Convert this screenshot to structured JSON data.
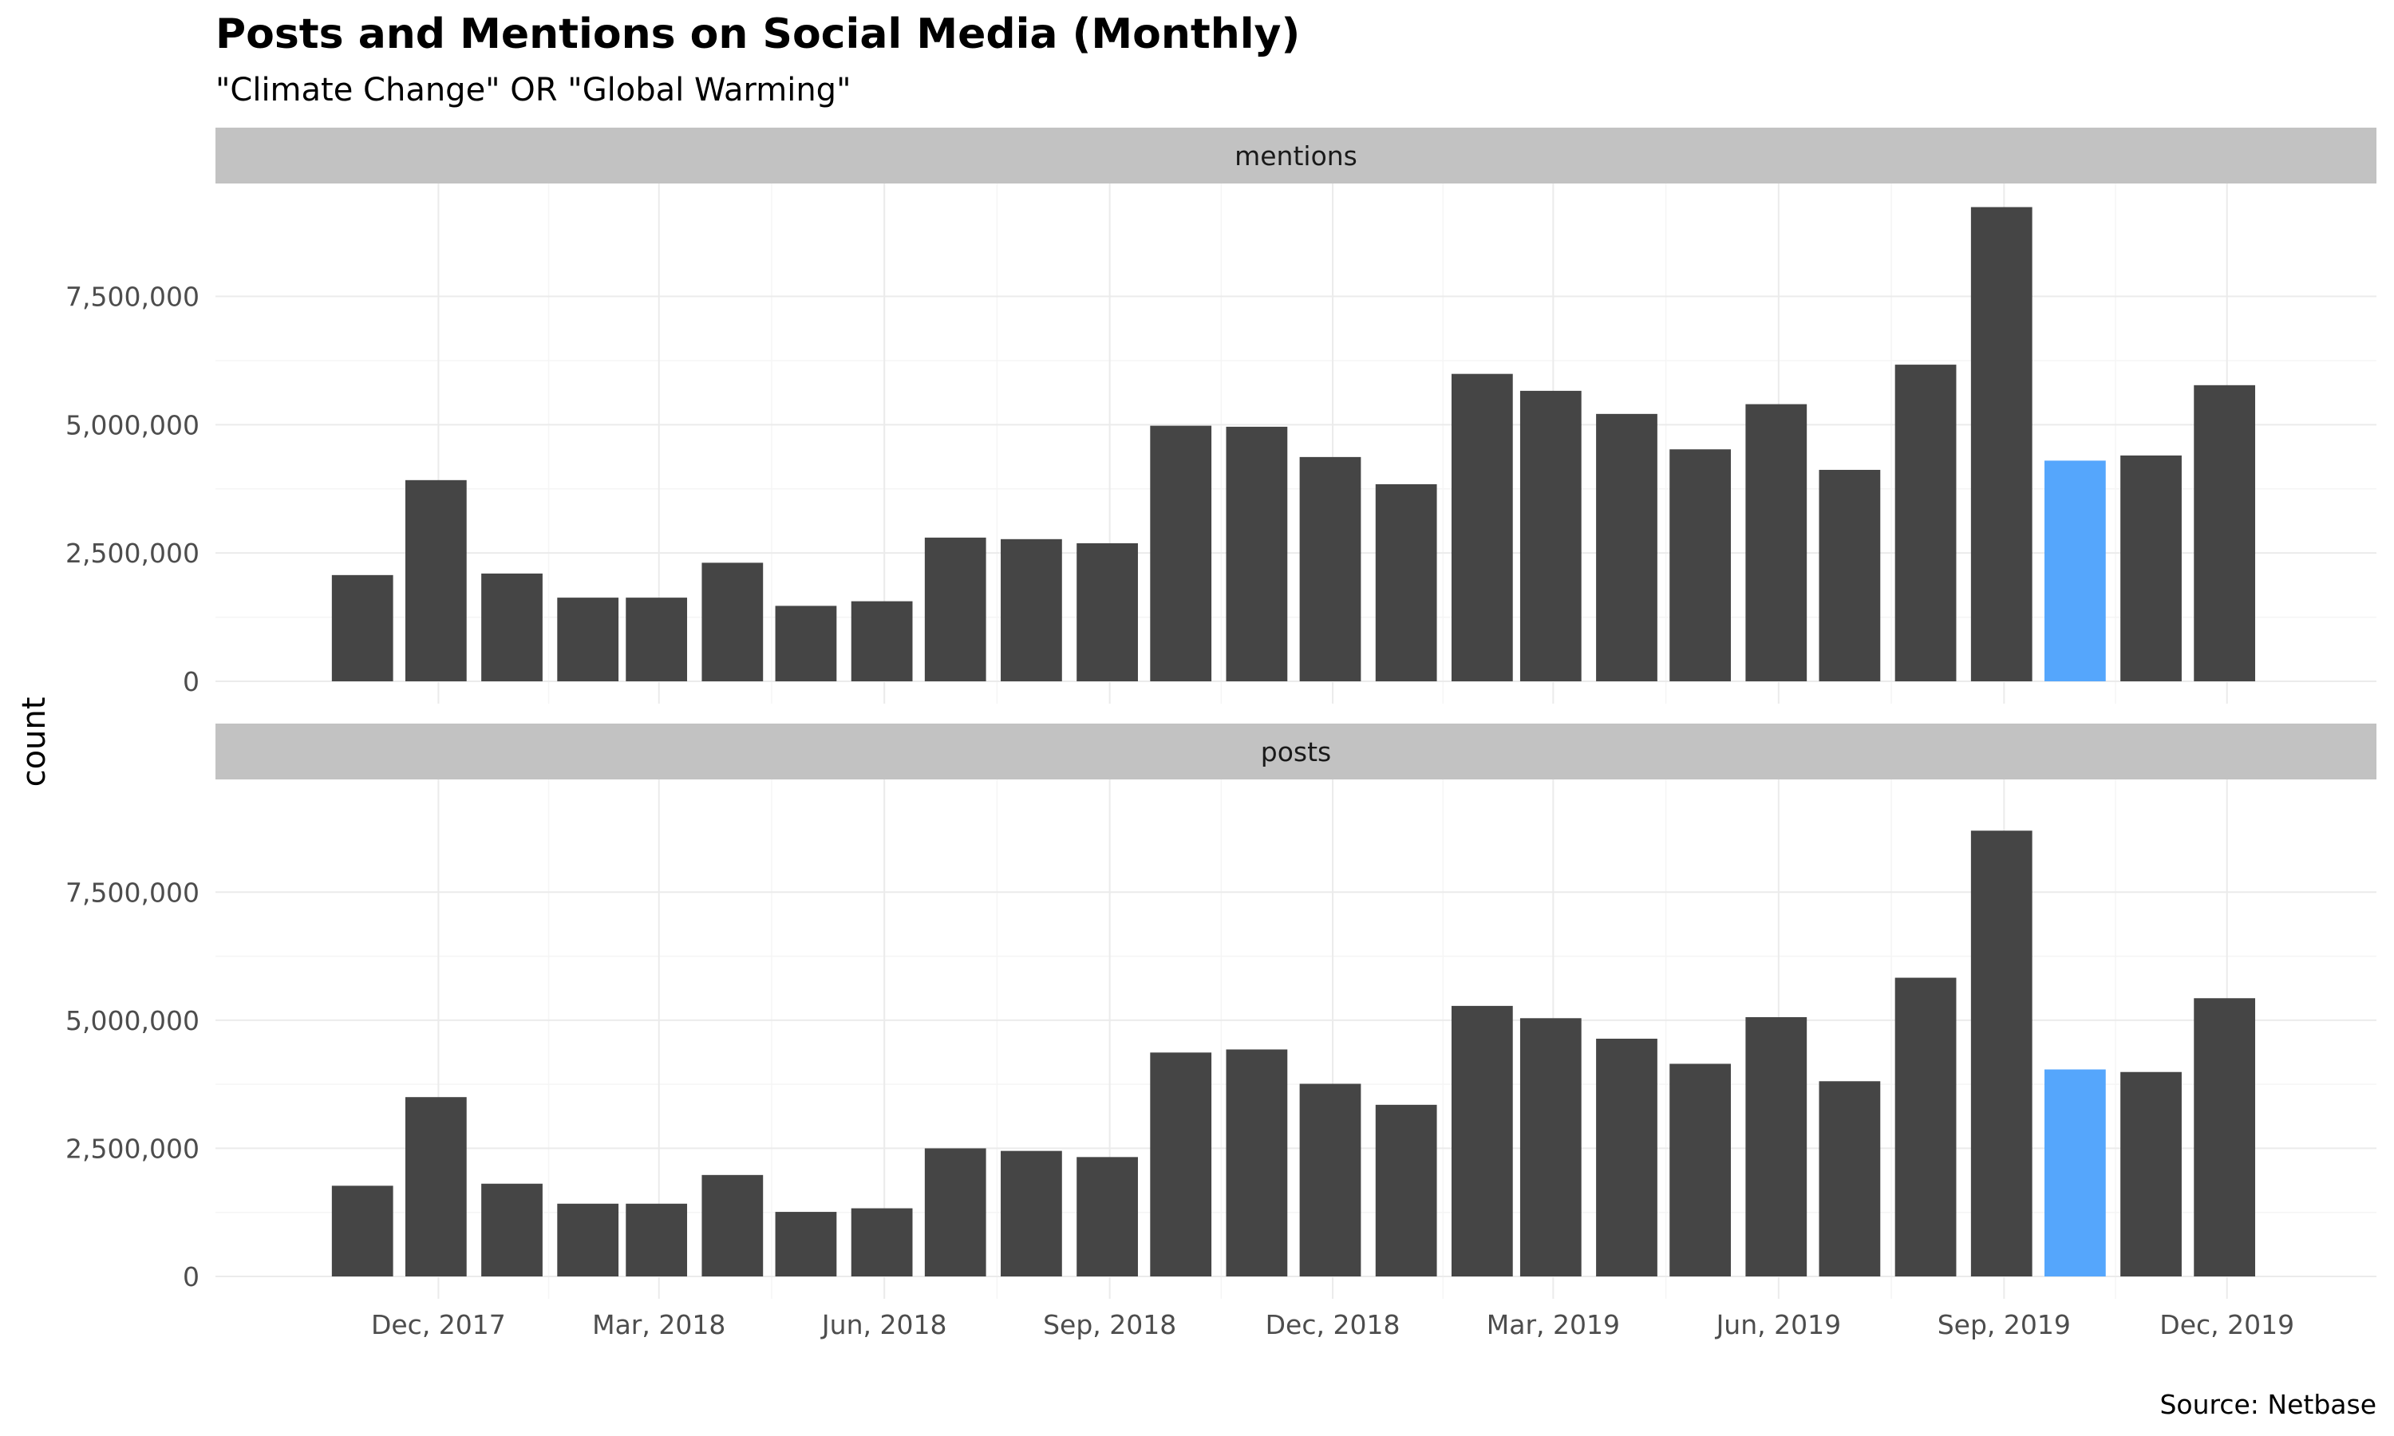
{
  "chart_data": {
    "type": "bar",
    "title": "Posts and Mentions on Social Media (Monthly)",
    "subtitle": "\"Climate Change\" OR \"Global Warming\"",
    "caption": "Source: Netbase",
    "ylabel": "count",
    "xlabel": "",
    "ylim": [
      0,
      9700000
    ],
    "y_ticks": [
      0,
      2500000,
      5000000,
      7500000
    ],
    "y_tick_labels": [
      "0",
      "2,500,000",
      "5,000,000",
      "7,500,000"
    ],
    "x_tick_dates": [
      "2017-12-01",
      "2018-03-01",
      "2018-06-01",
      "2018-09-01",
      "2018-12-01",
      "2019-03-01",
      "2019-06-01",
      "2019-09-01",
      "2019-12-01"
    ],
    "x_tick_labels": [
      "Dec, 2017",
      "Mar, 2018",
      "Jun, 2018",
      "Sep, 2018",
      "Dec, 2018",
      "Mar, 2019",
      "Jun, 2019",
      "Sep, 2019",
      "Dec, 2019"
    ],
    "x_range": [
      "2017-09-01",
      "2020-01-31"
    ],
    "categories": [
      "2017-10-31",
      "2017-11-30",
      "2017-12-31",
      "2018-01-31",
      "2018-02-28",
      "2018-03-31",
      "2018-04-30",
      "2018-05-31",
      "2018-06-30",
      "2018-07-31",
      "2018-08-31",
      "2018-09-30",
      "2018-10-31",
      "2018-11-30",
      "2018-12-31",
      "2019-01-31",
      "2019-02-28",
      "2019-03-31",
      "2019-04-30",
      "2019-05-31",
      "2019-06-30",
      "2019-07-31",
      "2019-08-31",
      "2019-09-30",
      "2019-10-31",
      "2019-11-30"
    ],
    "highlight_index": 23,
    "grid": true,
    "legend": "none",
    "colors": {
      "bar": "#454545",
      "highlight": "#55a6fc",
      "strip": "#c2c2c2"
    },
    "panels": [
      {
        "name": "mentions",
        "values": [
          2070000,
          3920000,
          2100000,
          1630000,
          1630000,
          2310000,
          1470000,
          1560000,
          2800000,
          2770000,
          2690000,
          4980000,
          4960000,
          4370000,
          3840000,
          5990000,
          5660000,
          5210000,
          4520000,
          5400000,
          4120000,
          6170000,
          9240000,
          4300000,
          4400000,
          5770000
        ]
      },
      {
        "name": "posts",
        "values": [
          1770000,
          3500000,
          1810000,
          1420000,
          1420000,
          1980000,
          1260000,
          1330000,
          2500000,
          2450000,
          2330000,
          4370000,
          4430000,
          3760000,
          3350000,
          5280000,
          5040000,
          4640000,
          4150000,
          5060000,
          3810000,
          5830000,
          8700000,
          4040000,
          3990000,
          5430000
        ]
      }
    ]
  }
}
